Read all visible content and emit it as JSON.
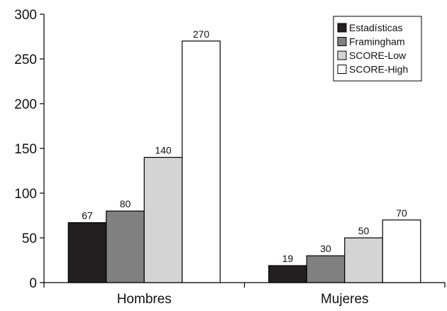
{
  "chart_data": {
    "type": "bar",
    "categories": [
      "Hombres",
      "Mujeres"
    ],
    "series": [
      {
        "name": "Estadísticas",
        "values": [
          67,
          19
        ],
        "color": "#231f20"
      },
      {
        "name": "Framingham",
        "values": [
          80,
          30
        ],
        "color": "#808080"
      },
      {
        "name": "SCORE-Low",
        "values": [
          140,
          50
        ],
        "color": "#d4d4d4"
      },
      {
        "name": "SCORE-High",
        "values": [
          270,
          70
        ],
        "color": "#ffffff"
      }
    ],
    "ylim": [
      0,
      300
    ],
    "yticks": [
      "0",
      "50",
      "100",
      "150",
      "200",
      "250",
      "300"
    ],
    "legend_position": "top-right",
    "grid": false,
    "title": "",
    "xlabel": "",
    "ylabel": ""
  }
}
